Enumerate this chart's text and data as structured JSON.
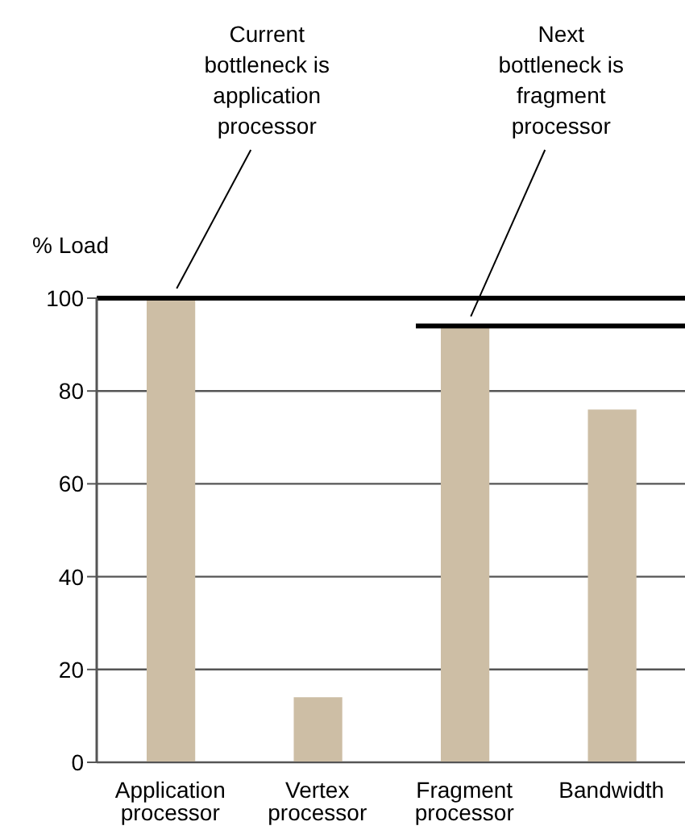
{
  "chart_data": {
    "type": "bar",
    "ylabel": "% Load",
    "categories": [
      "Application processor",
      "Vertex processor",
      "Fragment processor",
      "Bandwidth"
    ],
    "values": [
      100,
      14,
      94,
      76
    ],
    "color": "#cdbea5",
    "ylim": [
      0,
      100
    ],
    "yticks": [
      0,
      20,
      40,
      60,
      80,
      100
    ],
    "grid": "y",
    "ref_lines": [
      {
        "axis": "y",
        "value": 100,
        "color": "#000000"
      },
      {
        "axis": "y",
        "value": 94,
        "color": "#000000"
      }
    ],
    "annotations": [
      {
        "text": "Current bottleneck is application processor",
        "x": "Application processor",
        "y": 100
      },
      {
        "text": "Next bottleneck is fragment processor",
        "x": "Fragment processor",
        "y": 94
      }
    ]
  }
}
